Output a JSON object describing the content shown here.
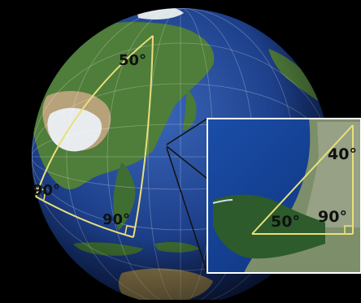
{
  "angles": {
    "globe_top": "50°",
    "globe_left": "90°",
    "globe_bottom": "90°",
    "inset_top": "40°",
    "inset_left": "50°",
    "inset_right": "90°"
  },
  "colors": {
    "background": "#000000",
    "ocean": "#1c3f86",
    "land": "#4b7a3a",
    "triangle_lines": "#e8e07a",
    "inset_border": "#ffffff"
  }
}
